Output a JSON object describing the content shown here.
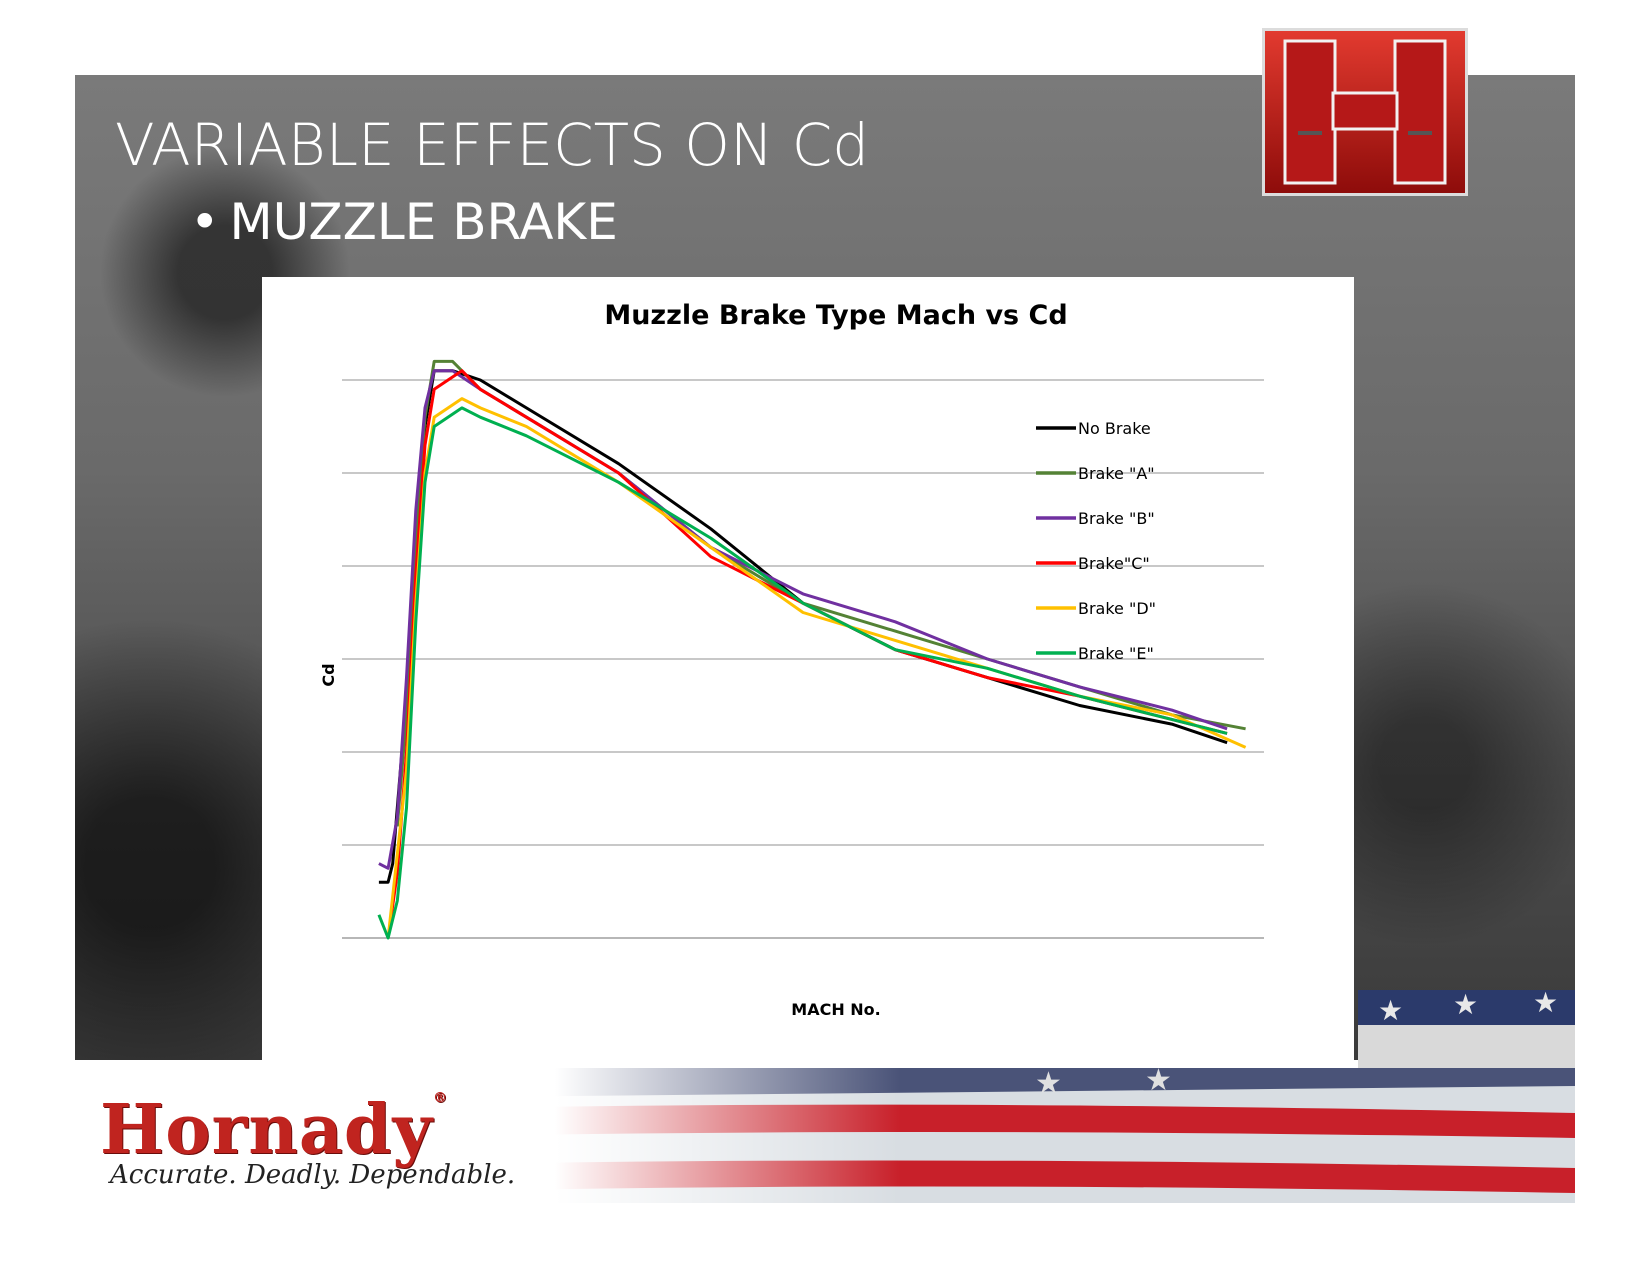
{
  "slide": {
    "title": "VARIABLE EFFECTS ON Cd",
    "bullet": "MUZZLE BRAKE",
    "bullet_symbol": "•"
  },
  "footer": {
    "brand": "Hornady",
    "registered_mark": "®",
    "tagline": "Accurate. Deadly. Dependable."
  },
  "colors": {
    "brand_red": "#c0241f",
    "logo_red": "#b31414"
  },
  "chart_data": {
    "type": "line",
    "title": "Muzzle Brake Type Mach vs Cd",
    "xlabel": "MACH No.",
    "ylabel": "Cd",
    "x_tick_labels": [],
    "y_tick_labels": [],
    "xlim": [
      0,
      1
    ],
    "ylim": [
      0,
      6
    ],
    "grid": "horizontal",
    "legend_position": "right",
    "series": [
      {
        "name": "No Brake",
        "color": "#000000",
        "points": [
          [
            0.04,
            0.6
          ],
          [
            0.05,
            0.6
          ],
          [
            0.055,
            0.8
          ],
          [
            0.06,
            1.4
          ],
          [
            0.07,
            2.6
          ],
          [
            0.08,
            4.4
          ],
          [
            0.09,
            5.5
          ],
          [
            0.1,
            6.1
          ],
          [
            0.12,
            6.1
          ],
          [
            0.15,
            6.0
          ],
          [
            0.2,
            5.7
          ],
          [
            0.3,
            5.1
          ],
          [
            0.4,
            4.4
          ],
          [
            0.5,
            3.6
          ],
          [
            0.6,
            3.1
          ],
          [
            0.7,
            2.8
          ],
          [
            0.8,
            2.5
          ],
          [
            0.9,
            2.3
          ],
          [
            0.96,
            2.1
          ]
        ]
      },
      {
        "name": "Brake \"A\"",
        "color": "#548235",
        "points": [
          [
            0.06,
            1.2
          ],
          [
            0.07,
            2.4
          ],
          [
            0.08,
            4.3
          ],
          [
            0.09,
            5.6
          ],
          [
            0.1,
            6.2
          ],
          [
            0.12,
            6.2
          ],
          [
            0.15,
            5.9
          ],
          [
            0.2,
            5.6
          ],
          [
            0.3,
            5.0
          ],
          [
            0.4,
            4.2
          ],
          [
            0.5,
            3.6
          ],
          [
            0.6,
            3.3
          ],
          [
            0.7,
            3.0
          ],
          [
            0.8,
            2.7
          ],
          [
            0.9,
            2.4
          ],
          [
            0.98,
            2.25
          ]
        ]
      },
      {
        "name": "Brake \"B\"",
        "color": "#7030a0",
        "points": [
          [
            0.04,
            0.8
          ],
          [
            0.05,
            0.75
          ],
          [
            0.06,
            1.3
          ],
          [
            0.07,
            2.8
          ],
          [
            0.08,
            4.6
          ],
          [
            0.09,
            5.7
          ],
          [
            0.1,
            6.1
          ],
          [
            0.12,
            6.1
          ],
          [
            0.15,
            5.9
          ],
          [
            0.2,
            5.6
          ],
          [
            0.3,
            5.0
          ],
          [
            0.4,
            4.2
          ],
          [
            0.5,
            3.7
          ],
          [
            0.6,
            3.4
          ],
          [
            0.7,
            3.0
          ],
          [
            0.8,
            2.7
          ],
          [
            0.9,
            2.45
          ],
          [
            0.96,
            2.25
          ]
        ]
      },
      {
        "name": "Brake\"C\"",
        "color": "#ff0000",
        "points": [
          [
            0.05,
            0.0
          ],
          [
            0.06,
            0.7
          ],
          [
            0.07,
            2.0
          ],
          [
            0.08,
            3.9
          ],
          [
            0.09,
            5.3
          ],
          [
            0.1,
            5.9
          ],
          [
            0.13,
            6.1
          ],
          [
            0.15,
            5.9
          ],
          [
            0.2,
            5.6
          ],
          [
            0.3,
            5.0
          ],
          [
            0.4,
            4.1
          ],
          [
            0.5,
            3.6
          ],
          [
            0.6,
            3.1
          ],
          [
            0.7,
            2.8
          ],
          [
            0.8,
            2.6
          ],
          [
            0.9,
            2.35
          ],
          [
            0.96,
            2.2
          ]
        ]
      },
      {
        "name": "Brake \"D\"",
        "color": "#ffc000",
        "points": [
          [
            0.05,
            0.0
          ],
          [
            0.07,
            1.8
          ],
          [
            0.08,
            3.6
          ],
          [
            0.09,
            5.0
          ],
          [
            0.1,
            5.6
          ],
          [
            0.13,
            5.8
          ],
          [
            0.15,
            5.7
          ],
          [
            0.2,
            5.5
          ],
          [
            0.3,
            4.9
          ],
          [
            0.4,
            4.2
          ],
          [
            0.5,
            3.5
          ],
          [
            0.6,
            3.2
          ],
          [
            0.7,
            2.9
          ],
          [
            0.8,
            2.6
          ],
          [
            0.9,
            2.4
          ],
          [
            0.98,
            2.05
          ]
        ]
      },
      {
        "name": "Brake \"E\"",
        "color": "#00b050",
        "points": [
          [
            0.04,
            0.25
          ],
          [
            0.05,
            0.0
          ],
          [
            0.06,
            0.4
          ],
          [
            0.07,
            1.4
          ],
          [
            0.08,
            3.4
          ],
          [
            0.09,
            4.9
          ],
          [
            0.1,
            5.5
          ],
          [
            0.13,
            5.7
          ],
          [
            0.15,
            5.6
          ],
          [
            0.2,
            5.4
          ],
          [
            0.3,
            4.9
          ],
          [
            0.4,
            4.3
          ],
          [
            0.5,
            3.6
          ],
          [
            0.6,
            3.1
          ],
          [
            0.7,
            2.9
          ],
          [
            0.8,
            2.6
          ],
          [
            0.9,
            2.35
          ],
          [
            0.96,
            2.2
          ]
        ]
      }
    ]
  }
}
